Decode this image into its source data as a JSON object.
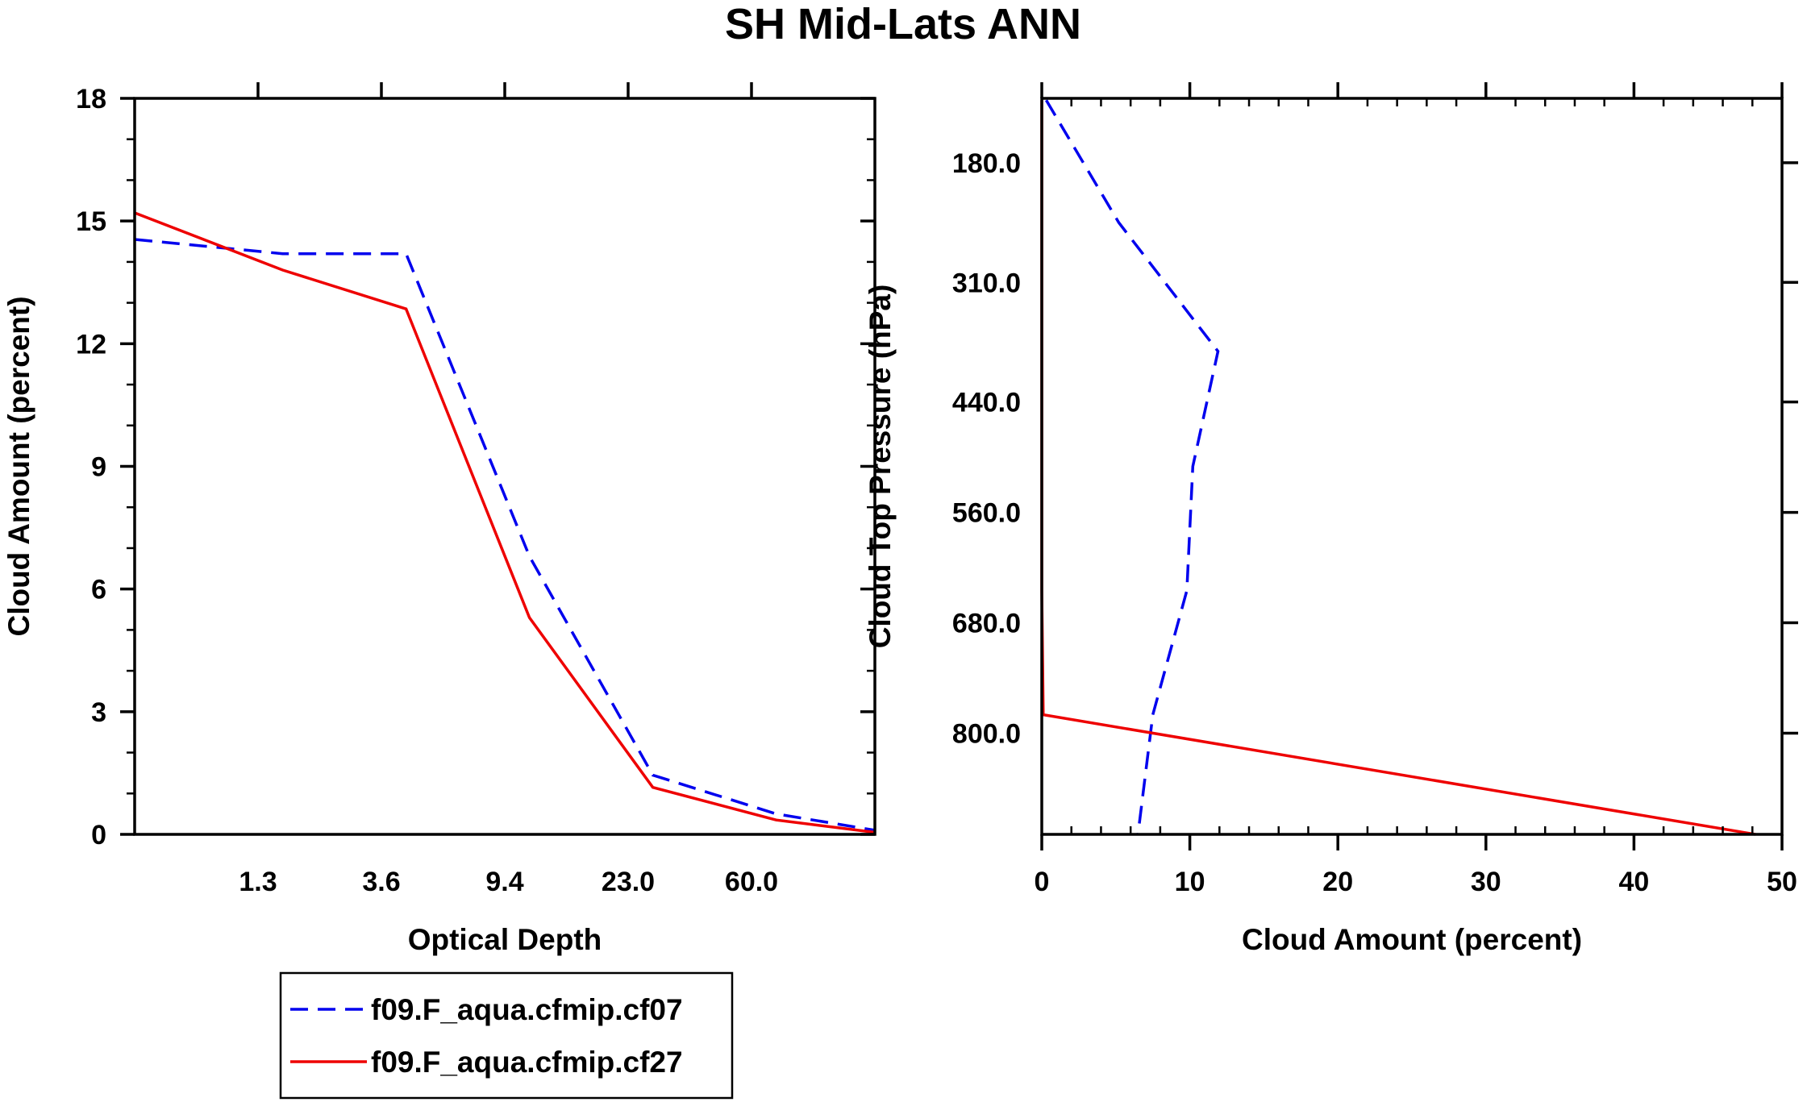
{
  "title": "SH Mid-Lats ANN",
  "colors": {
    "series1": "#0000ee",
    "series2": "#ee0000",
    "axis": "#000000"
  },
  "legend": [
    {
      "label": "f09.F_aqua.cfmip.cf07",
      "style": "dashed",
      "color": "#0000ee"
    },
    {
      "label": "f09.F_aqua.cfmip.cf27",
      "style": "solid",
      "color": "#ee0000"
    }
  ],
  "chart_data": [
    {
      "type": "line",
      "title": "SH Mid-Lats ANN",
      "xlabel": "Optical Depth",
      "ylabel": "Cloud Amount (percent)",
      "x_index": [
        0,
        1,
        2,
        3,
        4,
        5
      ],
      "xlim": [
        -0.5,
        5.5
      ],
      "x_tick_positions": [
        0.5,
        1.5,
        2.5,
        3.5,
        4.5
      ],
      "x_tick_labels": [
        "1.3",
        "3.6",
        "9.4",
        "23.0",
        "60.0"
      ],
      "ylim": [
        0,
        18
      ],
      "y_ticks": [
        0,
        3,
        6,
        9,
        12,
        15,
        18
      ],
      "series": [
        {
          "name": "f09.F_aqua.cfmip.cf07",
          "style": "dashed",
          "x": [
            -0.5,
            0.7,
            1.7,
            2.7,
            3.7,
            4.7,
            5.5
          ],
          "values": [
            14.55,
            14.2,
            14.2,
            6.8,
            1.45,
            0.5,
            0.1
          ]
        },
        {
          "name": "f09.F_aqua.cfmip.cf27",
          "style": "solid",
          "x": [
            -0.5,
            0.7,
            1.7,
            2.7,
            3.7,
            4.7,
            5.5
          ],
          "values": [
            15.2,
            13.8,
            12.85,
            5.3,
            1.15,
            0.35,
            0.05
          ]
        }
      ]
    },
    {
      "type": "line",
      "xlabel": "Cloud Amount (percent)",
      "ylabel": "Cloud Top Pressure (hPa)",
      "xlim": [
        0,
        50
      ],
      "x_ticks": [
        0,
        10,
        20,
        30,
        40,
        50
      ],
      "ylim": [
        110,
        910
      ],
      "y_reversed": true,
      "y_tick_values": [
        180,
        310,
        440,
        560,
        680,
        800
      ],
      "y_tick_labels": [
        "180.0",
        "310.0",
        "440.0",
        "560.0",
        "680.0",
        "800.0"
      ],
      "series": [
        {
          "name": "f09.F_aqua.cfmip.cf07",
          "style": "dashed",
          "x": [
            0.3,
            5.2,
            11.9,
            10.2,
            9.8,
            7.5,
            6.5
          ],
          "y": [
            112,
            245,
            385,
            510,
            645,
            780,
            910
          ]
        },
        {
          "name": "f09.F_aqua.cfmip.cf27",
          "style": "solid",
          "x": [
            0.0,
            0.0,
            0.0,
            0.0,
            0.0,
            0.1,
            48.2
          ],
          "y": [
            112,
            245,
            385,
            510,
            645,
            780,
            910
          ]
        }
      ]
    }
  ]
}
